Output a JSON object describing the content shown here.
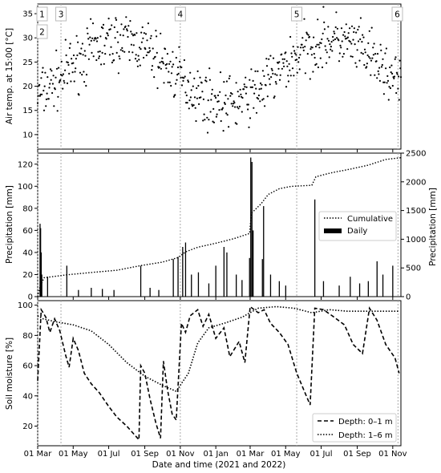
{
  "chart_data": [
    {
      "type": "scatter",
      "ylabel": "Air temp. at 15:00 [°C]",
      "ylim": [
        7,
        37
      ],
      "yticks": [
        10,
        15,
        20,
        25,
        30,
        35
      ],
      "series": [
        {
          "color": "#000000",
          "points": []
        }
      ],
      "markers": [
        {
          "label": "1",
          "date": "2021-03-01"
        },
        {
          "label": "2",
          "date": "2021-03-01"
        },
        {
          "label": "3",
          "date": "2021-04-10"
        },
        {
          "label": "4",
          "date": "2021-11-01"
        },
        {
          "label": "5",
          "date": "2022-05-20"
        },
        {
          "label": "6",
          "date": "2022-11-10"
        }
      ]
    },
    {
      "type": "bar",
      "ylabel": "Precipitation [mm]",
      "ylim": [
        0,
        130
      ],
      "yticks": [
        0,
        20,
        40,
        60,
        80,
        100,
        120
      ],
      "y2label": "Precipitation [mm]",
      "y2lim": [
        0,
        2500
      ],
      "y2ticks": [
        0,
        500,
        1000,
        1500,
        2000,
        2500
      ],
      "legend": {
        "position": "center-right",
        "entries": [
          "Cumulative",
          "Daily"
        ]
      },
      "daily_events": [
        {
          "date": "2021-03-05",
          "mm": 66
        },
        {
          "date": "2021-03-06",
          "mm": 62
        },
        {
          "date": "2021-03-07",
          "mm": 40
        },
        {
          "date": "2021-03-08",
          "mm": 20
        },
        {
          "date": "2021-03-18",
          "mm": 18
        },
        {
          "date": "2021-04-20",
          "mm": 28
        },
        {
          "date": "2021-05-10",
          "mm": 6
        },
        {
          "date": "2021-06-01",
          "mm": 8
        },
        {
          "date": "2021-06-20",
          "mm": 7
        },
        {
          "date": "2021-07-10",
          "mm": 6
        },
        {
          "date": "2021-08-25",
          "mm": 28
        },
        {
          "date": "2021-09-10",
          "mm": 8
        },
        {
          "date": "2021-09-25",
          "mm": 6
        },
        {
          "date": "2021-10-20",
          "mm": 34
        },
        {
          "date": "2021-10-28",
          "mm": 36
        },
        {
          "date": "2021-11-05",
          "mm": 45
        },
        {
          "date": "2021-11-10",
          "mm": 49
        },
        {
          "date": "2021-11-20",
          "mm": 20
        },
        {
          "date": "2021-12-02",
          "mm": 22
        },
        {
          "date": "2021-12-20",
          "mm": 12
        },
        {
          "date": "2022-01-01",
          "mm": 28
        },
        {
          "date": "2022-01-15",
          "mm": 45
        },
        {
          "date": "2022-01-20",
          "mm": 40
        },
        {
          "date": "2022-02-05",
          "mm": 20
        },
        {
          "date": "2022-02-15",
          "mm": 15
        },
        {
          "date": "2022-02-28",
          "mm": 35
        },
        {
          "date": "2022-03-02",
          "mm": 126
        },
        {
          "date": "2022-03-04",
          "mm": 122
        },
        {
          "date": "2022-03-06",
          "mm": 60
        },
        {
          "date": "2022-03-22",
          "mm": 34
        },
        {
          "date": "2022-03-24",
          "mm": 82
        },
        {
          "date": "2022-04-05",
          "mm": 20
        },
        {
          "date": "2022-04-20",
          "mm": 14
        },
        {
          "date": "2022-05-01",
          "mm": 10
        },
        {
          "date": "2022-06-20",
          "mm": 88
        },
        {
          "date": "2022-07-05",
          "mm": 14
        },
        {
          "date": "2022-08-01",
          "mm": 10
        },
        {
          "date": "2022-08-20",
          "mm": 18
        },
        {
          "date": "2022-09-05",
          "mm": 12
        },
        {
          "date": "2022-09-20",
          "mm": 14
        },
        {
          "date": "2022-10-05",
          "mm": 32
        },
        {
          "date": "2022-10-15",
          "mm": 20
        },
        {
          "date": "2022-11-01",
          "mm": 28
        }
      ],
      "cumulative": [
        {
          "date": "2021-03-01",
          "mm": 0
        },
        {
          "date": "2021-03-05",
          "mm": 170
        },
        {
          "date": "2021-03-12",
          "mm": 330
        },
        {
          "date": "2021-04-20",
          "mm": 380
        },
        {
          "date": "2021-06-01",
          "mm": 420
        },
        {
          "date": "2021-07-15",
          "mm": 460
        },
        {
          "date": "2021-08-25",
          "mm": 540
        },
        {
          "date": "2021-10-01",
          "mm": 600
        },
        {
          "date": "2021-10-28",
          "mm": 680
        },
        {
          "date": "2021-11-10",
          "mm": 780
        },
        {
          "date": "2021-12-01",
          "mm": 860
        },
        {
          "date": "2022-01-01",
          "mm": 930
        },
        {
          "date": "2022-02-01",
          "mm": 1010
        },
        {
          "date": "2022-02-28",
          "mm": 1100
        },
        {
          "date": "2022-03-03",
          "mm": 1450
        },
        {
          "date": "2022-03-20",
          "mm": 1620
        },
        {
          "date": "2022-04-01",
          "mm": 1780
        },
        {
          "date": "2022-04-20",
          "mm": 1880
        },
        {
          "date": "2022-05-10",
          "mm": 1920
        },
        {
          "date": "2022-06-15",
          "mm": 1940
        },
        {
          "date": "2022-06-22",
          "mm": 2090
        },
        {
          "date": "2022-07-20",
          "mm": 2160
        },
        {
          "date": "2022-08-20",
          "mm": 2220
        },
        {
          "date": "2022-09-20",
          "mm": 2290
        },
        {
          "date": "2022-10-20",
          "mm": 2390
        },
        {
          "date": "2022-11-15",
          "mm": 2420
        }
      ]
    },
    {
      "type": "line",
      "xlabel": "Date and time (2021 and 2022)",
      "ylabel": "Soil moisture [%]",
      "ylim": [
        7,
        103
      ],
      "yticks": [
        20,
        40,
        60,
        80,
        100
      ],
      "xlim": [
        "2021-03-01",
        "2022-11-15"
      ],
      "xticks": [
        "2021-03-01",
        "2021-05-01",
        "2021-07-01",
        "2021-09-01",
        "2021-11-01",
        "2022-01-01",
        "2022-03-01",
        "2022-05-01",
        "2022-07-01",
        "2022-09-01",
        "2022-11-01"
      ],
      "xtick_labels": [
        "01 Mar",
        "01 May",
        "01 Jul",
        "01 Sep",
        "01 Nov",
        "01 Jan",
        "01 Mar",
        "01 May",
        "01 Jul",
        "01 Sep",
        "01 Nov"
      ],
      "legend": {
        "position": "bottom-right",
        "entries": [
          "Depth: 0–1 m",
          "Depth: 1–6 m"
        ]
      },
      "series": [
        {
          "name": "Depth: 0–1 m",
          "style": "dashed",
          "points": [
            [
              "2021-03-01",
              50
            ],
            [
              "2021-03-07",
              97
            ],
            [
              "2021-03-15",
              92
            ],
            [
              "2021-03-22",
              82
            ],
            [
              "2021-03-30",
              91
            ],
            [
              "2021-04-08",
              83
            ],
            [
              "2021-04-18",
              67
            ],
            [
              "2021-04-24",
              59
            ],
            [
              "2021-05-01",
              78
            ],
            [
              "2021-05-10",
              70
            ],
            [
              "2021-05-20",
              55
            ],
            [
              "2021-06-01",
              48
            ],
            [
              "2021-06-15",
              42
            ],
            [
              "2021-07-01",
              33
            ],
            [
              "2021-07-15",
              26
            ],
            [
              "2021-08-01",
              20
            ],
            [
              "2021-08-15",
              14
            ],
            [
              "2021-08-22",
              11
            ],
            [
              "2021-08-25",
              60
            ],
            [
              "2021-09-01",
              55
            ],
            [
              "2021-09-10",
              38
            ],
            [
              "2021-09-20",
              22
            ],
            [
              "2021-09-28",
              12
            ],
            [
              "2021-10-03",
              63
            ],
            [
              "2021-10-10",
              44
            ],
            [
              "2021-10-18",
              28
            ],
            [
              "2021-10-25",
              24
            ],
            [
              "2021-11-03",
              88
            ],
            [
              "2021-11-10",
              82
            ],
            [
              "2021-11-18",
              93
            ],
            [
              "2021-12-01",
              97
            ],
            [
              "2021-12-10",
              86
            ],
            [
              "2021-12-20",
              94
            ],
            [
              "2022-01-01",
              78
            ],
            [
              "2022-01-15",
              85
            ],
            [
              "2022-01-25",
              66
            ],
            [
              "2022-02-10",
              76
            ],
            [
              "2022-02-20",
              62
            ],
            [
              "2022-03-01",
              99
            ],
            [
              "2022-03-15",
              95
            ],
            [
              "2022-03-25",
              97
            ],
            [
              "2022-04-05",
              88
            ],
            [
              "2022-04-20",
              82
            ],
            [
              "2022-05-05",
              74
            ],
            [
              "2022-05-20",
              55
            ],
            [
              "2022-06-01",
              44
            ],
            [
              "2022-06-12",
              34
            ],
            [
              "2022-06-20",
              98
            ],
            [
              "2022-07-05",
              97
            ],
            [
              "2022-07-20",
              93
            ],
            [
              "2022-08-10",
              87
            ],
            [
              "2022-08-25",
              74
            ],
            [
              "2022-09-10",
              68
            ],
            [
              "2022-09-22",
              98
            ],
            [
              "2022-10-05",
              90
            ],
            [
              "2022-10-20",
              74
            ],
            [
              "2022-11-05",
              65
            ],
            [
              "2022-11-12",
              55
            ]
          ]
        },
        {
          "name": "Depth: 1–6 m",
          "style": "dotted",
          "points": [
            [
              "2021-03-01",
              93
            ],
            [
              "2021-03-10",
              91
            ],
            [
              "2021-04-01",
              89
            ],
            [
              "2021-05-01",
              87
            ],
            [
              "2021-06-01",
              83
            ],
            [
              "2021-07-01",
              74
            ],
            [
              "2021-08-01",
              62
            ],
            [
              "2021-09-01",
              53
            ],
            [
              "2021-10-01",
              47
            ],
            [
              "2021-10-25",
              43
            ],
            [
              "2021-11-15",
              55
            ],
            [
              "2021-12-01",
              75
            ],
            [
              "2021-12-20",
              85
            ],
            [
              "2022-01-15",
              88
            ],
            [
              "2022-02-15",
              92
            ],
            [
              "2022-03-15",
              98
            ],
            [
              "2022-04-15",
              99
            ],
            [
              "2022-05-15",
              98
            ],
            [
              "2022-06-15",
              95
            ],
            [
              "2022-07-15",
              97
            ],
            [
              "2022-08-15",
              96
            ],
            [
              "2022-09-15",
              96
            ],
            [
              "2022-10-15",
              96
            ],
            [
              "2022-11-12",
              96
            ]
          ]
        }
      ]
    }
  ]
}
